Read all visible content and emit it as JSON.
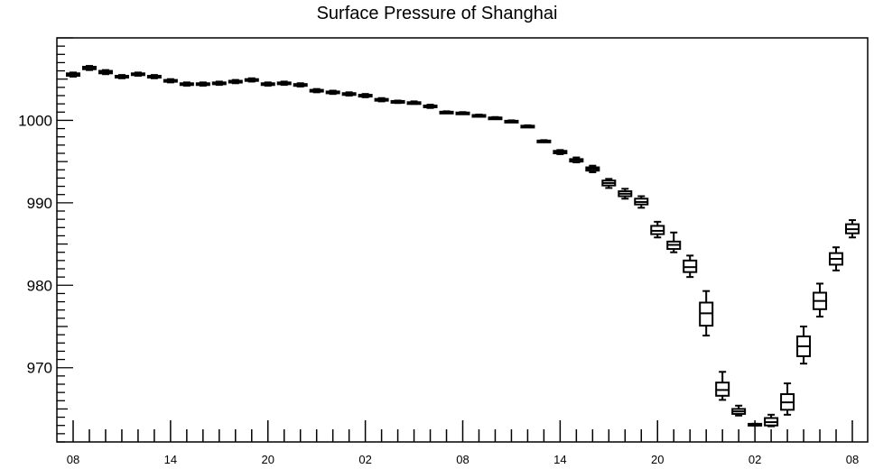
{
  "chart_data": {
    "type": "box",
    "title": "Surface Pressure of Shanghai",
    "xlabel": "",
    "ylabel": "",
    "ylim": [
      961,
      1010
    ],
    "grid": false,
    "y_ticks": [
      970,
      980,
      990,
      1000
    ],
    "x_tick_labels": [
      "08",
      "14",
      "20",
      "02",
      "08",
      "14",
      "20",
      "02",
      "08"
    ],
    "x_tick_label_hour_index": [
      0,
      6,
      12,
      18,
      24,
      30,
      36,
      42,
      48
    ],
    "hours_count": 49,
    "boxes": [
      {
        "hour": 0,
        "min": 1005.3,
        "q1": 1005.4,
        "median": 1005.6,
        "q3": 1005.7,
        "max": 1005.8
      },
      {
        "hour": 1,
        "min": 1006.1,
        "q1": 1006.2,
        "median": 1006.4,
        "q3": 1006.5,
        "max": 1006.6
      },
      {
        "hour": 2,
        "min": 1005.6,
        "q1": 1005.7,
        "median": 1005.9,
        "q3": 1006.0,
        "max": 1006.1
      },
      {
        "hour": 3,
        "min": 1005.1,
        "q1": 1005.2,
        "median": 1005.3,
        "q3": 1005.4,
        "max": 1005.5
      },
      {
        "hour": 4,
        "min": 1005.4,
        "q1": 1005.5,
        "median": 1005.6,
        "q3": 1005.7,
        "max": 1005.8
      },
      {
        "hour": 5,
        "min": 1005.1,
        "q1": 1005.2,
        "median": 1005.3,
        "q3": 1005.4,
        "max": 1005.5
      },
      {
        "hour": 6,
        "min": 1004.6,
        "q1": 1004.7,
        "median": 1004.8,
        "q3": 1004.9,
        "max": 1005.0
      },
      {
        "hour": 7,
        "min": 1004.2,
        "q1": 1004.3,
        "median": 1004.4,
        "q3": 1004.5,
        "max": 1004.6
      },
      {
        "hour": 8,
        "min": 1004.2,
        "q1": 1004.3,
        "median": 1004.4,
        "q3": 1004.5,
        "max": 1004.6
      },
      {
        "hour": 9,
        "min": 1004.3,
        "q1": 1004.4,
        "median": 1004.5,
        "q3": 1004.6,
        "max": 1004.7
      },
      {
        "hour": 10,
        "min": 1004.5,
        "q1": 1004.6,
        "median": 1004.7,
        "q3": 1004.8,
        "max": 1004.9
      },
      {
        "hour": 11,
        "min": 1004.7,
        "q1": 1004.8,
        "median": 1004.9,
        "q3": 1005.0,
        "max": 1005.1
      },
      {
        "hour": 12,
        "min": 1004.2,
        "q1": 1004.3,
        "median": 1004.4,
        "q3": 1004.5,
        "max": 1004.6
      },
      {
        "hour": 13,
        "min": 1004.3,
        "q1": 1004.4,
        "median": 1004.5,
        "q3": 1004.6,
        "max": 1004.7
      },
      {
        "hour": 14,
        "min": 1004.1,
        "q1": 1004.2,
        "median": 1004.3,
        "q3": 1004.4,
        "max": 1004.5
      },
      {
        "hour": 15,
        "min": 1003.4,
        "q1": 1003.5,
        "median": 1003.6,
        "q3": 1003.7,
        "max": 1003.8
      },
      {
        "hour": 16,
        "min": 1003.2,
        "q1": 1003.3,
        "median": 1003.4,
        "q3": 1003.5,
        "max": 1003.6
      },
      {
        "hour": 17,
        "min": 1003.0,
        "q1": 1003.1,
        "median": 1003.2,
        "q3": 1003.3,
        "max": 1003.4
      },
      {
        "hour": 18,
        "min": 1002.8,
        "q1": 1002.9,
        "median": 1003.0,
        "q3": 1003.1,
        "max": 1003.2
      },
      {
        "hour": 19,
        "min": 1002.3,
        "q1": 1002.4,
        "median": 1002.5,
        "q3": 1002.6,
        "max": 1002.7
      },
      {
        "hour": 20,
        "min": 1002.1,
        "q1": 1002.2,
        "median": 1002.3,
        "q3": 1002.35,
        "max": 1002.4
      },
      {
        "hour": 21,
        "min": 1002.0,
        "q1": 1002.05,
        "median": 1002.1,
        "q3": 1002.2,
        "max": 1002.3
      },
      {
        "hour": 22,
        "min": 1001.5,
        "q1": 1001.6,
        "median": 1001.7,
        "q3": 1001.8,
        "max": 1001.9
      },
      {
        "hour": 23,
        "min": 1000.9,
        "q1": 1000.95,
        "median": 1001.0,
        "q3": 1001.05,
        "max": 1001.1
      },
      {
        "hour": 24,
        "min": 1000.8,
        "q1": 1000.85,
        "median": 1000.9,
        "q3": 1000.95,
        "max": 1001.0
      },
      {
        "hour": 25,
        "min": 1000.5,
        "q1": 1000.55,
        "median": 1000.6,
        "q3": 1000.65,
        "max": 1000.7
      },
      {
        "hour": 26,
        "min": 1000.2,
        "q1": 1000.25,
        "median": 1000.3,
        "q3": 1000.35,
        "max": 1000.4
      },
      {
        "hour": 27,
        "min": 999.8,
        "q1": 999.85,
        "median": 999.9,
        "q3": 999.95,
        "max": 1000.0
      },
      {
        "hour": 28,
        "min": 999.2,
        "q1": 999.25,
        "median": 999.3,
        "q3": 999.35,
        "max": 999.4
      },
      {
        "hour": 29,
        "min": 997.4,
        "q1": 997.45,
        "median": 997.5,
        "q3": 997.55,
        "max": 997.6
      },
      {
        "hour": 30,
        "min": 995.9,
        "q1": 996.0,
        "median": 996.2,
        "q3": 996.3,
        "max": 996.4
      },
      {
        "hour": 31,
        "min": 994.9,
        "q1": 995.0,
        "median": 995.2,
        "q3": 995.3,
        "max": 995.5
      },
      {
        "hour": 32,
        "min": 993.7,
        "q1": 993.9,
        "median": 994.1,
        "q3": 994.3,
        "max": 994.5
      },
      {
        "hour": 33,
        "min": 991.8,
        "q1": 992.1,
        "median": 992.4,
        "q3": 992.7,
        "max": 992.9
      },
      {
        "hour": 34,
        "min": 990.5,
        "q1": 990.8,
        "median": 991.1,
        "q3": 991.4,
        "max": 991.7
      },
      {
        "hour": 35,
        "min": 989.4,
        "q1": 989.8,
        "median": 990.1,
        "q3": 990.5,
        "max": 990.8
      },
      {
        "hour": 36,
        "min": 985.8,
        "q1": 986.2,
        "median": 986.6,
        "q3": 987.2,
        "max": 987.7
      },
      {
        "hour": 37,
        "min": 984.0,
        "q1": 984.4,
        "median": 984.9,
        "q3": 985.3,
        "max": 986.4
      },
      {
        "hour": 38,
        "min": 981.0,
        "q1": 981.6,
        "median": 982.2,
        "q3": 983.0,
        "max": 983.6
      },
      {
        "hour": 39,
        "min": 973.9,
        "q1": 975.1,
        "median": 976.6,
        "q3": 977.9,
        "max": 979.3
      },
      {
        "hour": 40,
        "min": 966.1,
        "q1": 966.6,
        "median": 967.3,
        "q3": 968.2,
        "max": 969.5
      },
      {
        "hour": 41,
        "min": 964.2,
        "q1": 964.4,
        "median": 964.7,
        "q3": 965.0,
        "max": 965.4
      },
      {
        "hour": 42,
        "min": 963.0,
        "q1": 963.0,
        "median": 963.1,
        "q3": 963.2,
        "max": 963.2
      },
      {
        "hour": 43,
        "min": 962.9,
        "q1": 963.0,
        "median": 963.4,
        "q3": 963.9,
        "max": 964.3
      },
      {
        "hour": 44,
        "min": 964.3,
        "q1": 964.9,
        "median": 965.8,
        "q3": 966.8,
        "max": 968.1
      },
      {
        "hour": 45,
        "min": 970.5,
        "q1": 971.4,
        "median": 972.6,
        "q3": 973.8,
        "max": 975.0
      },
      {
        "hour": 46,
        "min": 976.2,
        "q1": 977.1,
        "median": 978.1,
        "q3": 979.1,
        "max": 980.2
      },
      {
        "hour": 47,
        "min": 981.8,
        "q1": 982.5,
        "median": 983.2,
        "q3": 983.9,
        "max": 984.6
      },
      {
        "hour": 48,
        "min": 985.8,
        "q1": 986.3,
        "median": 986.8,
        "q3": 987.4,
        "max": 987.9
      }
    ]
  }
}
